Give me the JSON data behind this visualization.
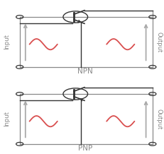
{
  "bg_color": "#ffffff",
  "box_color": "#888888",
  "line_color": "#444444",
  "arrow_color": "#aaaaaa",
  "sine_color": "#d94f4f",
  "text_color": "#888888",
  "tc_color": "#333333",
  "npn_label": "NPN",
  "pnp_label": "PNP",
  "input_label": "Input",
  "output_label": "Output",
  "figsize": [
    2.31,
    2.18
  ],
  "dpi": 100
}
